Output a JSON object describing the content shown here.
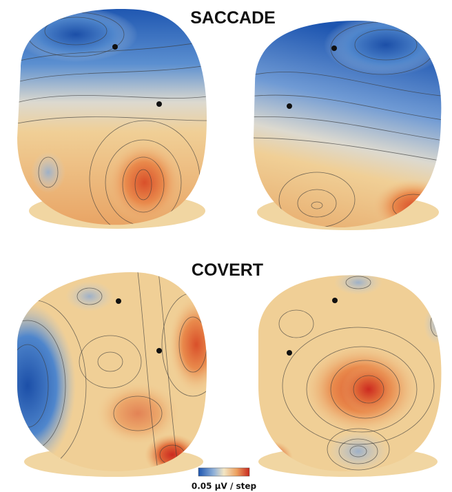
{
  "panels": [
    {
      "title": "SACCADE"
    },
    {
      "title": "COVERT"
    }
  ],
  "colorbar": {
    "label": "0.05 µV / step"
  }
}
